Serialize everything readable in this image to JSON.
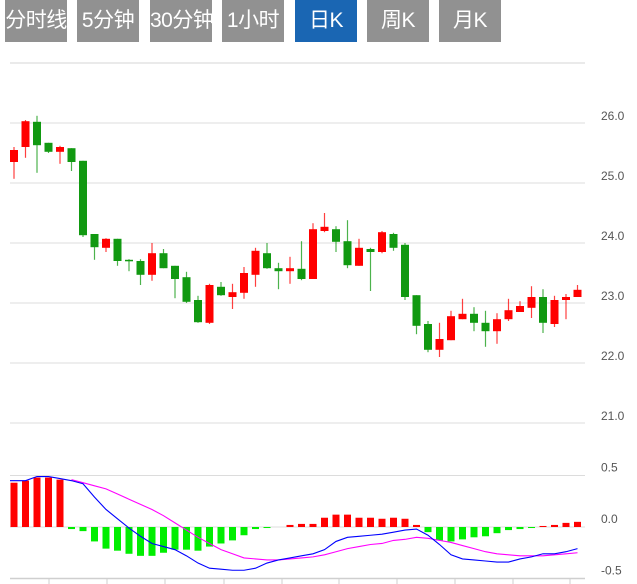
{
  "tabs": [
    {
      "label": "分时线",
      "active": false
    },
    {
      "label": "5分钟",
      "active": false
    },
    {
      "label": "30分钟",
      "active": false
    },
    {
      "label": "1小时",
      "active": false
    },
    {
      "label": "日K",
      "active": true
    },
    {
      "label": "周K",
      "active": false
    },
    {
      "label": "月K",
      "active": false
    }
  ],
  "colors": {
    "up": "#ff0000",
    "down": "#119911",
    "macd_up": "#ff0000",
    "macd_down": "#00ee00",
    "dif": "#0000ff",
    "dea": "#ff00ff",
    "tab_bg": "#919191",
    "tab_active": "#1a66b3"
  },
  "chart_data": [
    {
      "type": "candlestick",
      "title": "日K",
      "y_ticks": [
        "26.0",
        "25.0",
        "24.0",
        "23.0",
        "22.0",
        "21.0"
      ],
      "ylim": [
        21.0,
        27.0
      ],
      "grid": true,
      "ohlc": [
        [
          25.35,
          25.6,
          25.07,
          25.55
        ],
        [
          25.6,
          26.05,
          25.42,
          26.03
        ],
        [
          26.02,
          26.12,
          25.17,
          25.63
        ],
        [
          25.67,
          25.67,
          25.5,
          25.52
        ],
        [
          25.52,
          25.62,
          25.32,
          25.6
        ],
        [
          25.58,
          25.58,
          25.2,
          25.35
        ],
        [
          25.37,
          25.37,
          24.1,
          24.13
        ],
        [
          24.15,
          24.15,
          23.72,
          23.93
        ],
        [
          23.92,
          24.08,
          23.85,
          24.07
        ],
        [
          24.07,
          24.07,
          23.62,
          23.7
        ],
        [
          23.72,
          23.73,
          23.53,
          23.7
        ],
        [
          23.7,
          23.73,
          23.3,
          23.47
        ],
        [
          23.47,
          24.0,
          23.37,
          23.83
        ],
        [
          23.83,
          23.9,
          23.58,
          23.58
        ],
        [
          23.62,
          23.62,
          23.08,
          23.4
        ],
        [
          23.43,
          23.52,
          23.0,
          23.02
        ],
        [
          23.05,
          23.12,
          22.67,
          22.68
        ],
        [
          22.67,
          23.32,
          22.65,
          23.3
        ],
        [
          23.27,
          23.35,
          23.12,
          23.13
        ],
        [
          23.1,
          23.32,
          22.9,
          23.18
        ],
        [
          23.17,
          23.6,
          23.07,
          23.5
        ],
        [
          23.47,
          23.92,
          23.27,
          23.87
        ],
        [
          23.83,
          24.0,
          23.57,
          23.58
        ],
        [
          23.58,
          23.67,
          23.23,
          23.53
        ],
        [
          23.53,
          23.77,
          23.32,
          23.58
        ],
        [
          23.57,
          24.03,
          23.38,
          23.4
        ],
        [
          23.4,
          24.33,
          23.4,
          24.23
        ],
        [
          24.2,
          24.5,
          24.18,
          24.27
        ],
        [
          24.23,
          24.28,
          23.85,
          24.02
        ],
        [
          24.03,
          24.38,
          23.58,
          23.63
        ],
        [
          23.62,
          24.07,
          23.62,
          23.92
        ],
        [
          23.9,
          23.92,
          23.2,
          23.85
        ],
        [
          23.85,
          24.2,
          23.83,
          24.18
        ],
        [
          24.15,
          24.17,
          23.87,
          23.92
        ],
        [
          23.97,
          24.0,
          23.05,
          23.1
        ],
        [
          23.13,
          23.13,
          22.48,
          22.62
        ],
        [
          22.65,
          22.7,
          22.18,
          22.22
        ],
        [
          22.22,
          22.67,
          22.1,
          22.4
        ],
        [
          22.38,
          22.87,
          22.38,
          22.78
        ],
        [
          22.73,
          23.07,
          22.73,
          22.82
        ],
        [
          22.82,
          22.93,
          22.53,
          22.67
        ],
        [
          22.67,
          22.87,
          22.27,
          22.53
        ],
        [
          22.53,
          22.83,
          22.32,
          22.73
        ],
        [
          22.73,
          23.07,
          22.7,
          22.88
        ],
        [
          22.85,
          23.03,
          22.85,
          22.95
        ],
        [
          22.92,
          23.28,
          22.75,
          23.1
        ],
        [
          23.1,
          23.23,
          22.5,
          22.67
        ],
        [
          22.65,
          23.12,
          22.6,
          23.05
        ],
        [
          23.05,
          23.15,
          22.73,
          23.1
        ],
        [
          23.1,
          23.3,
          23.1,
          23.22
        ]
      ]
    },
    {
      "type": "macd",
      "y_ticks": [
        "0.5",
        "0.0",
        "-0.5"
      ],
      "ylim": [
        -0.5,
        0.5
      ],
      "hist": [
        0.43,
        0.45,
        0.48,
        0.48,
        0.46,
        -0.02,
        -0.04,
        -0.14,
        -0.21,
        -0.23,
        -0.26,
        -0.28,
        -0.28,
        -0.25,
        -0.22,
        -0.22,
        -0.23,
        -0.19,
        -0.16,
        -0.13,
        -0.08,
        -0.02,
        -0.01,
        0,
        0.02,
        0.03,
        0.03,
        0.09,
        0.12,
        0.12,
        0.09,
        0.09,
        0.08,
        0.09,
        0.08,
        0.02,
        -0.05,
        -0.13,
        -0.14,
        -0.12,
        -0.1,
        -0.09,
        -0.06,
        -0.03,
        -0.02,
        -0.01,
        0.01,
        0.02,
        0.04,
        0.05
      ],
      "dif": [
        0.45,
        0.45,
        0.49,
        0.49,
        0.47,
        0.45,
        0.42,
        0.29,
        0.17,
        0.08,
        -0.01,
        -0.09,
        -0.16,
        -0.19,
        -0.22,
        -0.28,
        -0.35,
        -0.4,
        -0.41,
        -0.42,
        -0.42,
        -0.4,
        -0.35,
        -0.32,
        -0.3,
        -0.28,
        -0.26,
        -0.22,
        -0.14,
        -0.1,
        -0.09,
        -0.08,
        -0.07,
        -0.05,
        -0.03,
        -0.02,
        -0.08,
        -0.17,
        -0.27,
        -0.31,
        -0.32,
        -0.33,
        -0.34,
        -0.34,
        -0.31,
        -0.29,
        -0.26,
        -0.26,
        -0.24,
        -0.21
      ],
      "dea": [
        null,
        null,
        null,
        null,
        null,
        0.46,
        0.43,
        0.4,
        0.37,
        0.32,
        0.27,
        0.22,
        0.17,
        0.11,
        0.04,
        -0.03,
        -0.1,
        -0.16,
        -0.22,
        -0.26,
        -0.3,
        -0.31,
        -0.32,
        -0.32,
        -0.31,
        -0.3,
        -0.29,
        -0.27,
        -0.24,
        -0.21,
        -0.19,
        -0.17,
        -0.16,
        -0.13,
        -0.12,
        -0.1,
        -0.11,
        -0.13,
        -0.15,
        -0.18,
        -0.21,
        -0.24,
        -0.26,
        -0.27,
        -0.28,
        -0.28,
        -0.28,
        -0.27,
        -0.26,
        -0.25
      ]
    }
  ]
}
